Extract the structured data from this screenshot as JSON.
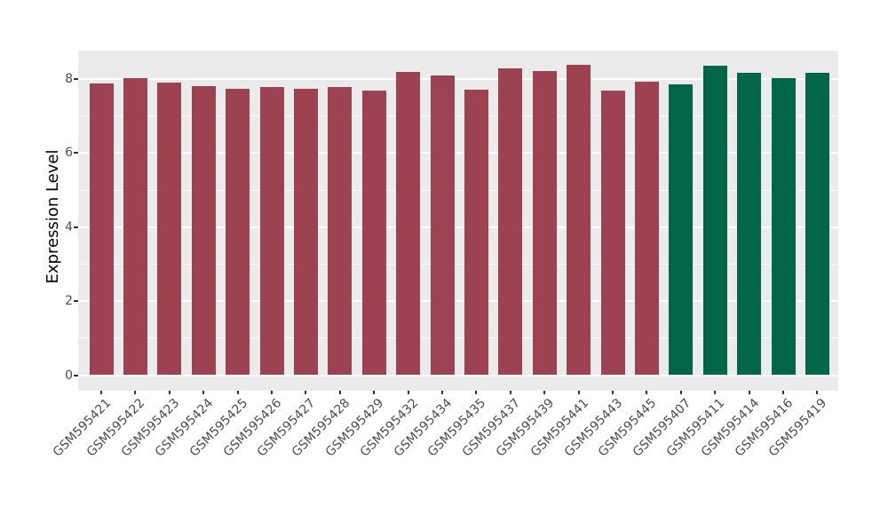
{
  "figure": {
    "background": "#FFFFFF",
    "panel_background": "#EBEBEB",
    "gridline_color": "#FFFFFF",
    "tick_color": "#333333",
    "axis_text_color": "#4D4D4D",
    "axis_title_color": "#000000"
  },
  "chart_data": {
    "type": "bar",
    "title": "",
    "xlabel": "",
    "ylabel": "Expression Level",
    "categories": [
      "GSM595421",
      "GSM595422",
      "GSM595423",
      "GSM595424",
      "GSM595425",
      "GSM595426",
      "GSM595427",
      "GSM595428",
      "GSM595429",
      "GSM595432",
      "GSM595434",
      "GSM595435",
      "GSM595437",
      "GSM595439",
      "GSM595441",
      "GSM595443",
      "GSM595445",
      "GSM595407",
      "GSM595411",
      "GSM595414",
      "GSM595416",
      "GSM595419"
    ],
    "values": [
      7.88,
      8.02,
      7.91,
      7.81,
      7.75,
      7.78,
      7.75,
      7.79,
      7.68,
      8.2,
      8.1,
      7.72,
      8.28,
      8.23,
      8.38,
      7.69,
      7.93,
      7.85,
      8.36,
      8.18,
      8.02,
      8.17
    ],
    "bar_colors": [
      "#9C4250",
      "#9C4250",
      "#9C4250",
      "#9C4250",
      "#9C4250",
      "#9C4250",
      "#9C4250",
      "#9C4250",
      "#9C4250",
      "#9C4250",
      "#9C4250",
      "#9C4250",
      "#9C4250",
      "#9C4250",
      "#9C4250",
      "#9C4250",
      "#9C4250",
      "#006647",
      "#006647",
      "#006647",
      "#006647",
      "#006647"
    ],
    "group_colors": {
      "maroon": "#9C4250",
      "green": "#006647"
    },
    "yticks": [
      0,
      2,
      4,
      6,
      8
    ],
    "minor_gridlines": [
      1,
      3,
      5,
      7
    ],
    "ylim": [
      -0.42,
      8.77
    ],
    "x_tick_rotation_deg": 45,
    "legend_position": "none",
    "grid": "on"
  }
}
